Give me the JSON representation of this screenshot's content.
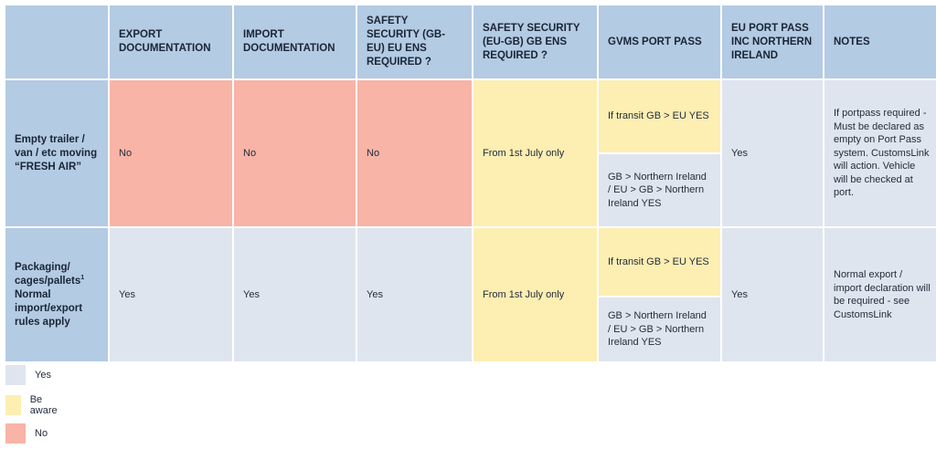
{
  "header": {
    "corner": "",
    "export_doc": "EXPORT DOCUMENTATION",
    "import_doc": "IMPORT DOCUMENTATION",
    "ss_gb_eu": "SAFETY SECURITY (GB-EU) EU ENS REQUIRED ?",
    "ss_eu_gb": "SAFETY SECURITY (EU-GB) GB ENS REQUIRED ?",
    "gvms": "GVMS PORT PASS",
    "eu_port_pass": "EU PORT PASS INC NORTHERN IRELAND",
    "notes": "NOTES"
  },
  "rows": [
    {
      "label": "Empty trailer / van / etc moving “FRESH AIR”",
      "export_doc": "No",
      "import_doc": "No",
      "ss_gb_eu": "No",
      "ss_eu_gb": "From 1st July only",
      "gvms_top": "If transit GB > EU YES",
      "gvms_bottom": "GB > Northern Ireland / EU > GB > Northern Ireland YES",
      "eu_port_pass": "Yes",
      "notes": "If portpass required - Must be declared as empty on Port Pass system. CustomsLink will action. Vehicle will be checked at port."
    },
    {
      "label": "Packaging/ cages/pallets",
      "label_sup": "1",
      "label_rest": "Normal import/export rules apply",
      "export_doc": "Yes",
      "import_doc": "Yes",
      "ss_gb_eu": "Yes",
      "ss_eu_gb": "From 1st July only",
      "gvms_top": "If transit GB > EU  YES",
      "gvms_bottom": "GB > Northern Ireland / EU > GB > Northern Ireland YES",
      "eu_port_pass": "Yes",
      "notes": "Normal export / import declaration will be required - see CustomsLink"
    }
  ],
  "legend": [
    {
      "label": "Yes",
      "color": "#dfe5ee"
    },
    {
      "label": "Be aware",
      "color": "#fdeeb2"
    },
    {
      "label": "No",
      "color": "#f8b4a6"
    }
  ],
  "colors": {
    "header": "#b3cbe3",
    "yes": "#dfe5ee",
    "aware": "#fdeeb2",
    "no": "#f8b4a6"
  }
}
